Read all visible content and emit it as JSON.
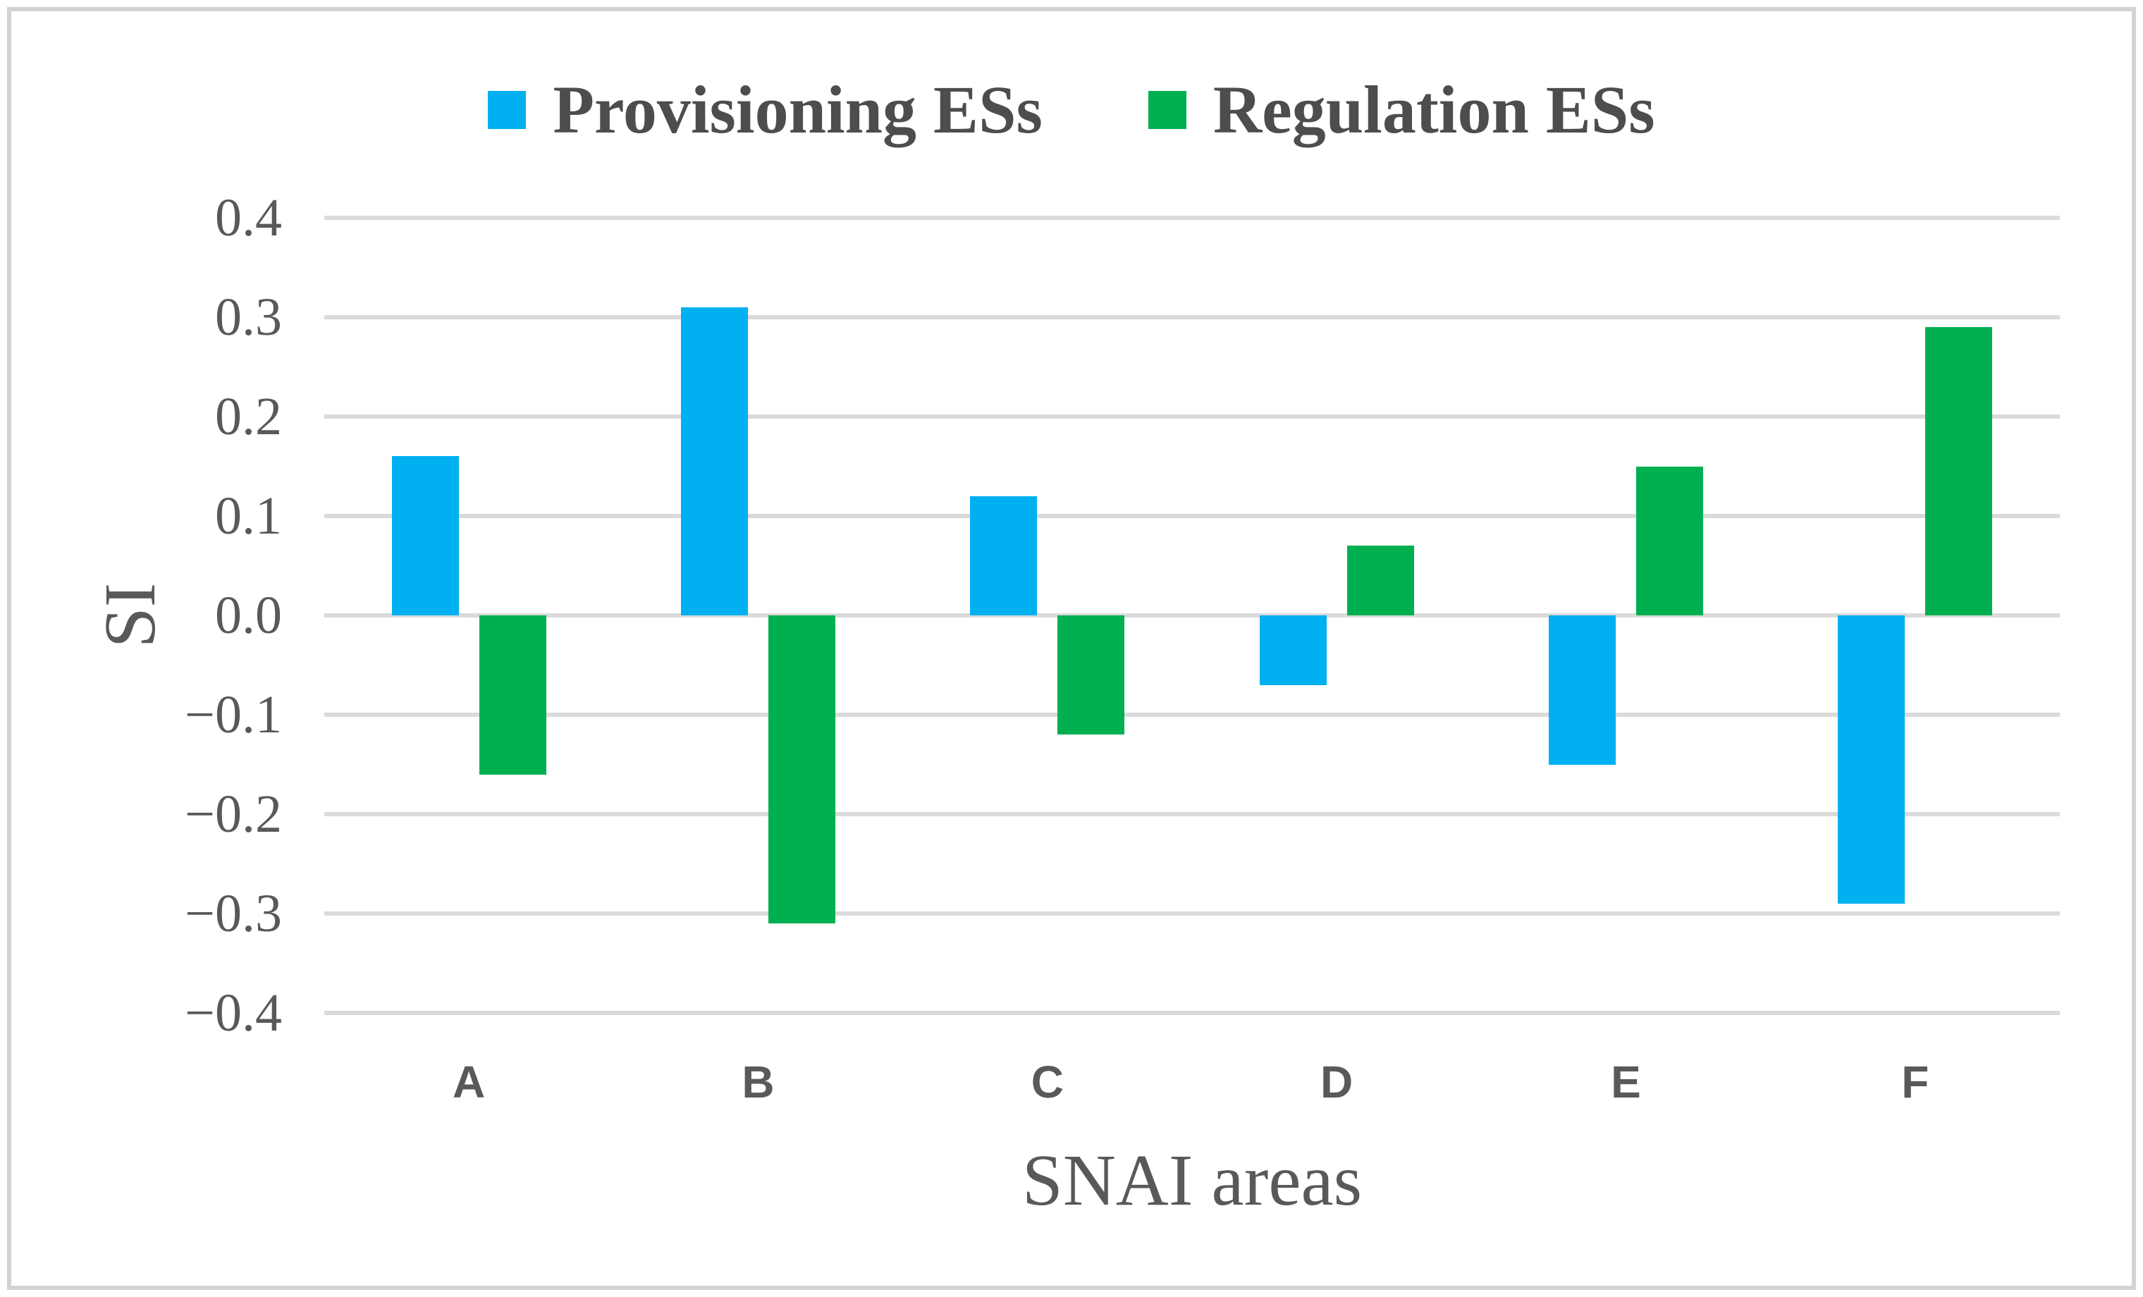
{
  "figure": {
    "background_color": "#ffffff",
    "border_color": "#d2d2d2"
  },
  "legend": {
    "position": "top",
    "items": [
      {
        "label": "Provisioning ESs",
        "color": "#00B0F0"
      },
      {
        "label": "Regulation ESs",
        "color": "#00B050"
      }
    ]
  },
  "chart_data": {
    "type": "bar",
    "title": "",
    "categories": [
      "A",
      "B",
      "C",
      "D",
      "E",
      "F"
    ],
    "series": [
      {
        "name": "Provisioning ESs",
        "color": "#00B0F0",
        "values": [
          0.16,
          0.31,
          0.12,
          -0.07,
          -0.15,
          -0.29
        ]
      },
      {
        "name": "Regulation ESs",
        "color": "#00B050",
        "values": [
          -0.16,
          -0.31,
          -0.12,
          0.07,
          0.15,
          0.29
        ]
      }
    ],
    "xlabel": "SNAI areas",
    "ylabel": "SI",
    "ylim": [
      -0.4,
      0.4
    ],
    "ytick_step": 0.1,
    "ytick_labels": [
      "0.4",
      "0.3",
      "0.2",
      "0.1",
      "0.0",
      "−0.1",
      "−0.2",
      "−0.3",
      "−0.4"
    ],
    "grid": "horizontal",
    "gridline_color": "#dadada",
    "text_color": "#595959",
    "legend_position": "top"
  }
}
